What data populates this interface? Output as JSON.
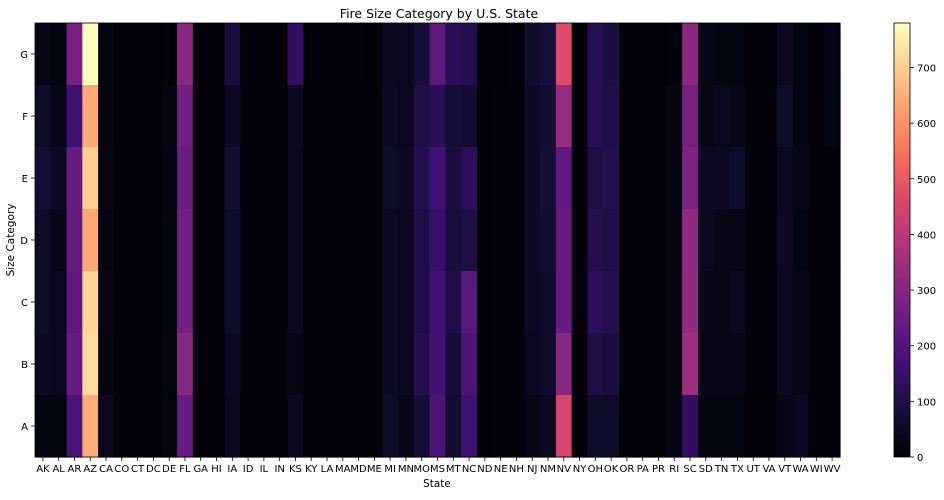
{
  "chart_data": {
    "type": "heatmap",
    "title": "Fire Size Category by U.S. State",
    "xlabel": "State",
    "ylabel": "Size Category",
    "colormap": "magma",
    "x_categories": [
      "AK",
      "AL",
      "AR",
      "AZ",
      "CA",
      "CO",
      "CT",
      "DC",
      "DE",
      "FL",
      "GA",
      "HI",
      "IA",
      "ID",
      "IL",
      "IN",
      "KS",
      "KY",
      "LA",
      "MA",
      "MD",
      "ME",
      "MI",
      "MN",
      "MO",
      "MS",
      "MT",
      "NC",
      "ND",
      "NE",
      "NH",
      "NJ",
      "NM",
      "NV",
      "NY",
      "OH",
      "OK",
      "OR",
      "PA",
      "PR",
      "RI",
      "SC",
      "SD",
      "TN",
      "TX",
      "UT",
      "VA",
      "VT",
      "WA",
      "WI",
      "WV"
    ],
    "y_categories": [
      "G",
      "F",
      "E",
      "D",
      "C",
      "B",
      "A"
    ],
    "colorbar": {
      "min": 0,
      "max": 780,
      "ticks": [
        0,
        100,
        200,
        300,
        400,
        500,
        600,
        700
      ]
    },
    "values": [
      [
        30,
        20,
        270,
        780,
        20,
        5,
        5,
        5,
        10,
        310,
        10,
        5,
        90,
        10,
        5,
        5,
        140,
        10,
        10,
        5,
        10,
        5,
        40,
        40,
        80,
        220,
        120,
        110,
        5,
        5,
        10,
        60,
        90,
        470,
        10,
        120,
        90,
        5,
        5,
        5,
        10,
        310,
        30,
        20,
        20,
        10,
        10,
        40,
        20,
        10,
        25
      ],
      [
        60,
        30,
        160,
        640,
        20,
        5,
        5,
        5,
        15,
        260,
        10,
        5,
        50,
        10,
        5,
        5,
        50,
        10,
        10,
        5,
        10,
        10,
        50,
        40,
        100,
        120,
        80,
        70,
        5,
        10,
        10,
        50,
        70,
        330,
        10,
        120,
        100,
        5,
        5,
        5,
        20,
        270,
        30,
        40,
        30,
        10,
        10,
        60,
        20,
        10,
        20
      ],
      [
        80,
        50,
        240,
        700,
        30,
        5,
        5,
        5,
        25,
        250,
        10,
        5,
        70,
        10,
        5,
        5,
        40,
        10,
        10,
        5,
        10,
        10,
        60,
        50,
        110,
        160,
        90,
        130,
        5,
        10,
        10,
        50,
        80,
        230,
        10,
        100,
        110,
        5,
        5,
        5,
        20,
        280,
        50,
        50,
        60,
        10,
        10,
        40,
        30,
        10,
        10
      ],
      [
        60,
        30,
        240,
        640,
        20,
        5,
        5,
        5,
        20,
        260,
        10,
        5,
        60,
        10,
        5,
        5,
        40,
        10,
        10,
        5,
        10,
        10,
        50,
        40,
        100,
        150,
        90,
        100,
        5,
        10,
        10,
        50,
        70,
        240,
        10,
        110,
        100,
        5,
        5,
        5,
        20,
        320,
        40,
        30,
        30,
        10,
        10,
        50,
        20,
        10,
        10
      ],
      [
        60,
        40,
        230,
        710,
        30,
        5,
        5,
        5,
        20,
        260,
        10,
        5,
        60,
        10,
        5,
        5,
        40,
        10,
        10,
        5,
        10,
        10,
        50,
        40,
        100,
        170,
        100,
        210,
        5,
        10,
        10,
        50,
        60,
        240,
        10,
        130,
        110,
        5,
        5,
        5,
        20,
        320,
        30,
        30,
        40,
        10,
        10,
        40,
        30,
        10,
        10
      ],
      [
        50,
        40,
        240,
        720,
        20,
        5,
        5,
        5,
        20,
        300,
        10,
        5,
        50,
        10,
        5,
        5,
        30,
        10,
        10,
        5,
        10,
        10,
        50,
        40,
        110,
        170,
        80,
        190,
        5,
        10,
        10,
        40,
        60,
        300,
        10,
        100,
        90,
        5,
        5,
        5,
        20,
        340,
        30,
        30,
        30,
        10,
        10,
        40,
        30,
        10,
        10
      ],
      [
        20,
        20,
        190,
        650,
        40,
        5,
        5,
        5,
        15,
        240,
        10,
        5,
        40,
        10,
        5,
        5,
        40,
        10,
        10,
        5,
        10,
        10,
        60,
        30,
        80,
        190,
        70,
        160,
        5,
        10,
        10,
        30,
        40,
        450,
        10,
        60,
        60,
        5,
        5,
        5,
        20,
        140,
        20,
        20,
        20,
        10,
        10,
        30,
        50,
        10,
        10
      ]
    ]
  }
}
